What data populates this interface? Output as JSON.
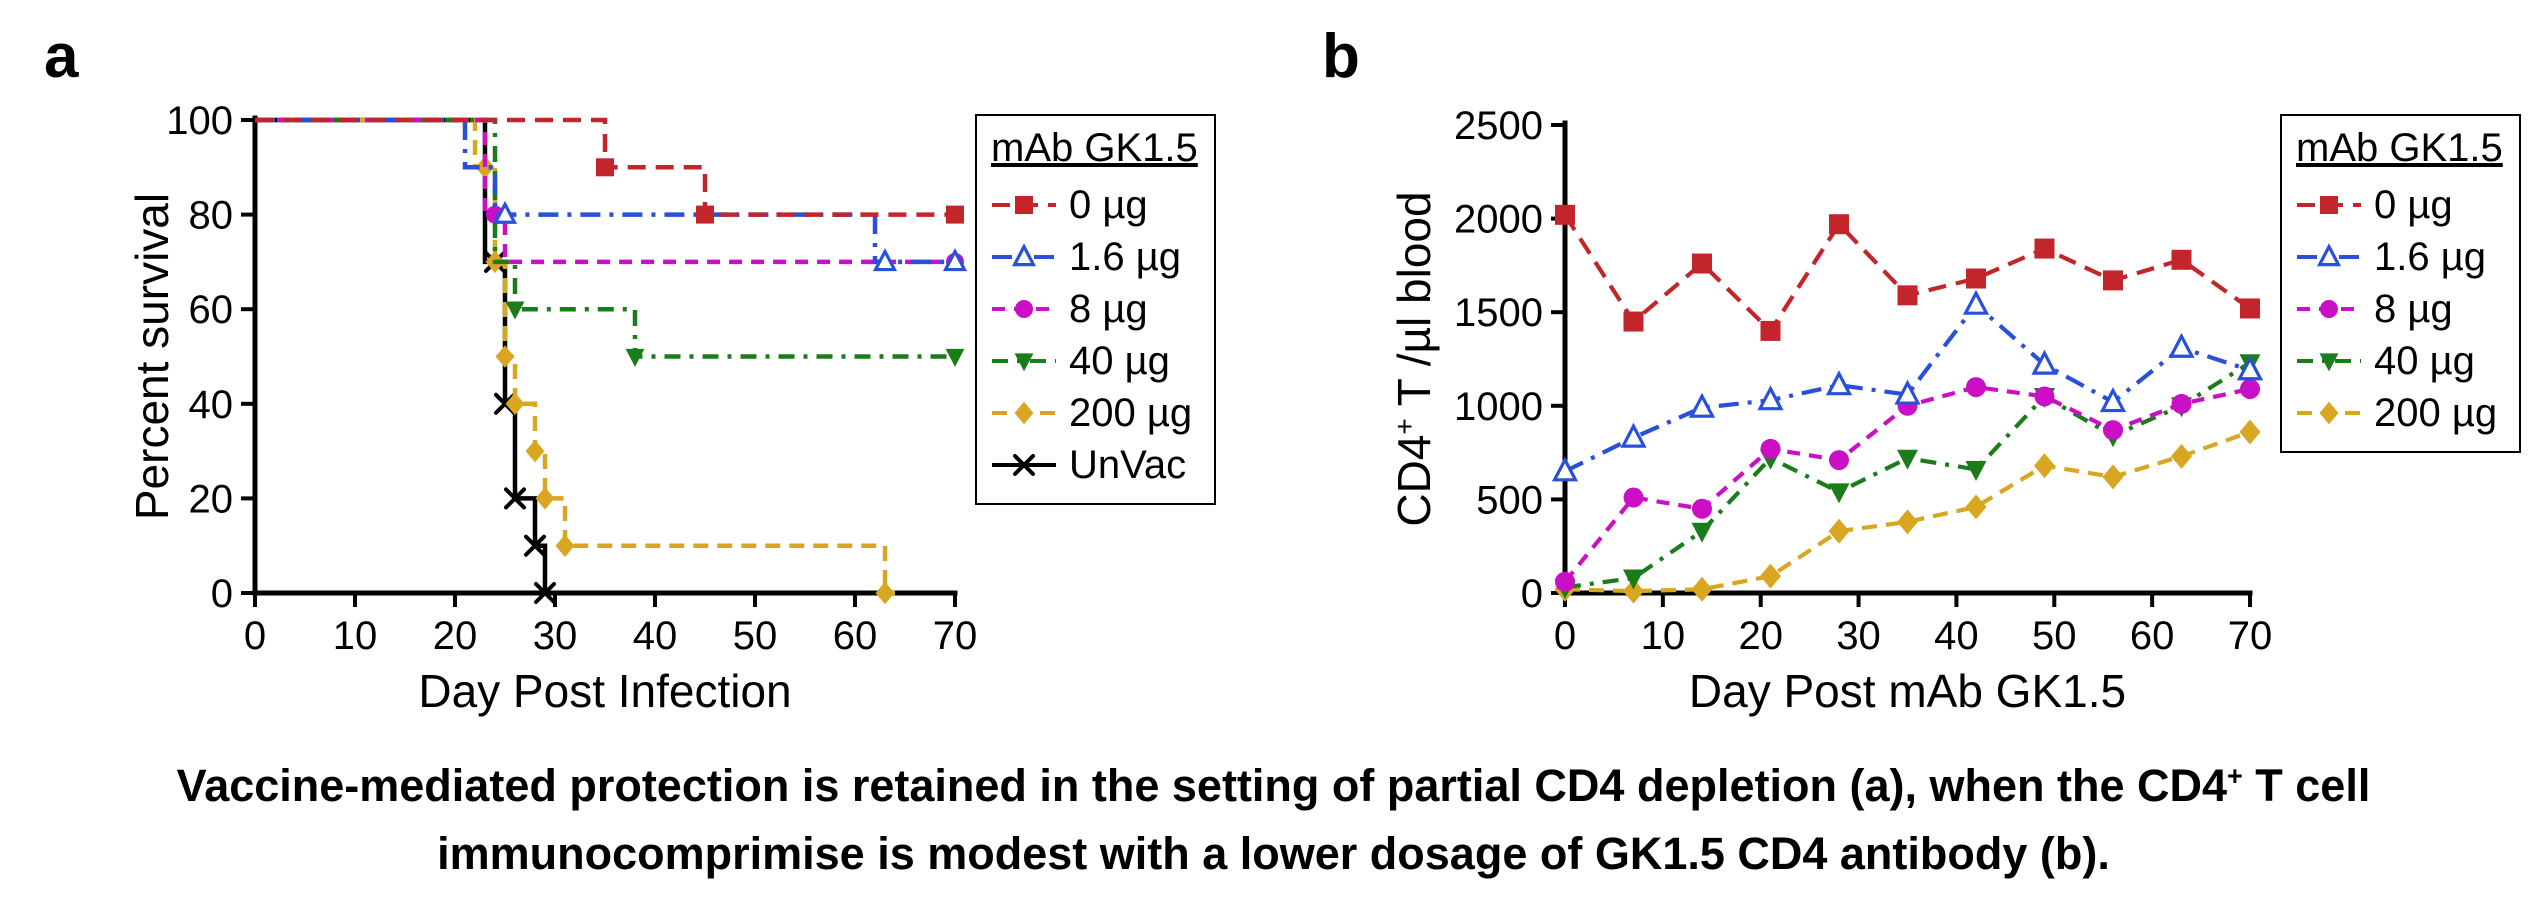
{
  "figure": {
    "panel_a_label": "a",
    "panel_b_label": "b"
  },
  "caption": {
    "parts": [
      {
        "t": "Vaccine-mediated protection is retained in the setting of partial CD4 depletion (a), when the  CD4"
      },
      {
        "t": "+",
        "sup": true
      },
      {
        "t": " T cell immunocomprimise is modest with a lower dosage of GK1.5 CD4 antibody (b)."
      }
    ]
  },
  "chart_data": [
    {
      "id": "panel_a",
      "type": "step",
      "title": "",
      "xlabel": "Day Post Infection",
      "ylabel": "Percent survival",
      "xlim": [
        0,
        70
      ],
      "ylim": [
        0,
        100
      ],
      "xticks": [
        0,
        10,
        20,
        30,
        40,
        50,
        60,
        70
      ],
      "yticks": [
        0,
        20,
        40,
        60,
        80,
        100
      ],
      "grid": false,
      "legend_title": "mAb GK1.5",
      "legend_position": "right",
      "series": [
        {
          "name": "0 µg",
          "color": "#c2262b",
          "dash": "18,10",
          "marker": "square",
          "path": [
            [
              0,
              100
            ],
            [
              35,
              100
            ],
            [
              35,
              90
            ],
            [
              45,
              90
            ],
            [
              45,
              80
            ],
            [
              70,
              80
            ]
          ],
          "markers": [
            [
              35,
              90
            ],
            [
              45,
              80
            ],
            [
              70,
              80
            ]
          ]
        },
        {
          "name": "1.6 µg",
          "color": "#2950d8",
          "dash": "20,9,4,9",
          "marker": "triangle-up-open",
          "path": [
            [
              0,
              100
            ],
            [
              21,
              100
            ],
            [
              21,
              90
            ],
            [
              24,
              90
            ],
            [
              24,
              80
            ],
            [
              62,
              80
            ],
            [
              62,
              70
            ],
            [
              70,
              70
            ]
          ],
          "markers": [
            [
              25,
              80
            ],
            [
              63,
              70
            ],
            [
              70,
              70
            ]
          ]
        },
        {
          "name": "8 µg",
          "color": "#cb0fc4",
          "dash": "13,9",
          "marker": "circle",
          "path": [
            [
              0,
              100
            ],
            [
              23,
              100
            ],
            [
              23,
              80
            ],
            [
              25,
              80
            ],
            [
              25,
              70
            ],
            [
              70,
              70
            ]
          ],
          "markers": [
            [
              24,
              80
            ],
            [
              70,
              70
            ]
          ]
        },
        {
          "name": "40 µg",
          "color": "#1a7d1a",
          "dash": "16,9,4,9",
          "marker": "triangle-down",
          "path": [
            [
              0,
              100
            ],
            [
              24,
              100
            ],
            [
              24,
              70
            ],
            [
              26,
              70
            ],
            [
              26,
              60
            ],
            [
              38,
              60
            ],
            [
              38,
              50
            ],
            [
              70,
              50
            ]
          ],
          "markers": [
            [
              26,
              60
            ],
            [
              38,
              50
            ],
            [
              70,
              50
            ]
          ]
        },
        {
          "name": "200 µg",
          "color": "#d9a621",
          "dash": "15,9",
          "marker": "diamond",
          "path": [
            [
              0,
              100
            ],
            [
              22,
              100
            ],
            [
              22,
              90
            ],
            [
              24,
              90
            ],
            [
              24,
              70
            ],
            [
              25,
              70
            ],
            [
              25,
              50
            ],
            [
              26,
              50
            ],
            [
              26,
              40
            ],
            [
              28,
              40
            ],
            [
              28,
              30
            ],
            [
              29,
              30
            ],
            [
              29,
              20
            ],
            [
              31,
              20
            ],
            [
              31,
              10
            ],
            [
              63,
              10
            ],
            [
              63,
              0
            ],
            [
              64,
              0
            ]
          ],
          "markers": [
            [
              23,
              90
            ],
            [
              24,
              70
            ],
            [
              25,
              50
            ],
            [
              26,
              40
            ],
            [
              28,
              30
            ],
            [
              29,
              20
            ],
            [
              31,
              10
            ],
            [
              63,
              0
            ]
          ]
        },
        {
          "name": "UnVac",
          "color": "#000000",
          "dash": "",
          "marker": "x",
          "path": [
            [
              0,
              100
            ],
            [
              23,
              100
            ],
            [
              23,
              70
            ],
            [
              25,
              70
            ],
            [
              25,
              40
            ],
            [
              26,
              40
            ],
            [
              26,
              20
            ],
            [
              28,
              20
            ],
            [
              28,
              10
            ],
            [
              29,
              10
            ],
            [
              29,
              0
            ],
            [
              30,
              0
            ]
          ],
          "markers": [
            [
              24,
              70
            ],
            [
              25,
              40
            ],
            [
              26,
              20
            ],
            [
              28,
              10
            ],
            [
              29,
              0
            ]
          ]
        }
      ]
    },
    {
      "id": "panel_b",
      "type": "line",
      "title": "",
      "xlabel": "Day Post mAb GK1.5",
      "ylabel": "CD4+ T /µl blood",
      "ylabel_parts": [
        {
          "t": "CD4"
        },
        {
          "t": "+",
          "sup": true
        },
        {
          "t": " T /µl blood"
        }
      ],
      "xlim": [
        0,
        70
      ],
      "ylim": [
        0,
        2500
      ],
      "xticks": [
        0,
        10,
        20,
        30,
        40,
        50,
        60,
        70
      ],
      "yticks": [
        0,
        500,
        1000,
        1500,
        2000,
        2500
      ],
      "grid": false,
      "legend_title": "mAb GK1.5",
      "legend_position": "right",
      "x": [
        0,
        7,
        14,
        21,
        28,
        35,
        42,
        49,
        56,
        63,
        70
      ],
      "series": [
        {
          "name": "0 µg",
          "color": "#c2262b",
          "dash": "18,10",
          "marker": "square",
          "values": [
            2020,
            1450,
            1760,
            1400,
            1970,
            1590,
            1680,
            1840,
            1670,
            1780,
            1520
          ]
        },
        {
          "name": "1.6 µg",
          "color": "#2950d8",
          "dash": "20,9,4,9",
          "marker": "triangle-up-open",
          "values": [
            650,
            830,
            990,
            1030,
            1110,
            1060,
            1540,
            1220,
            1020,
            1310,
            1190
          ]
        },
        {
          "name": "8 µg",
          "color": "#cb0fc4",
          "dash": "13,9",
          "marker": "circle",
          "values": [
            60,
            510,
            450,
            770,
            710,
            1000,
            1100,
            1050,
            870,
            1010,
            1090
          ]
        },
        {
          "name": "40 µg",
          "color": "#1a7d1a",
          "dash": "16,9,4,9",
          "marker": "triangle-down",
          "values": [
            30,
            80,
            330,
            720,
            540,
            720,
            660,
            1050,
            840,
            1000,
            1230
          ]
        },
        {
          "name": "200 µg",
          "color": "#d9a621",
          "dash": "15,9",
          "marker": "diamond",
          "values": [
            20,
            10,
            20,
            90,
            330,
            380,
            460,
            680,
            620,
            730,
            860
          ]
        }
      ]
    }
  ]
}
